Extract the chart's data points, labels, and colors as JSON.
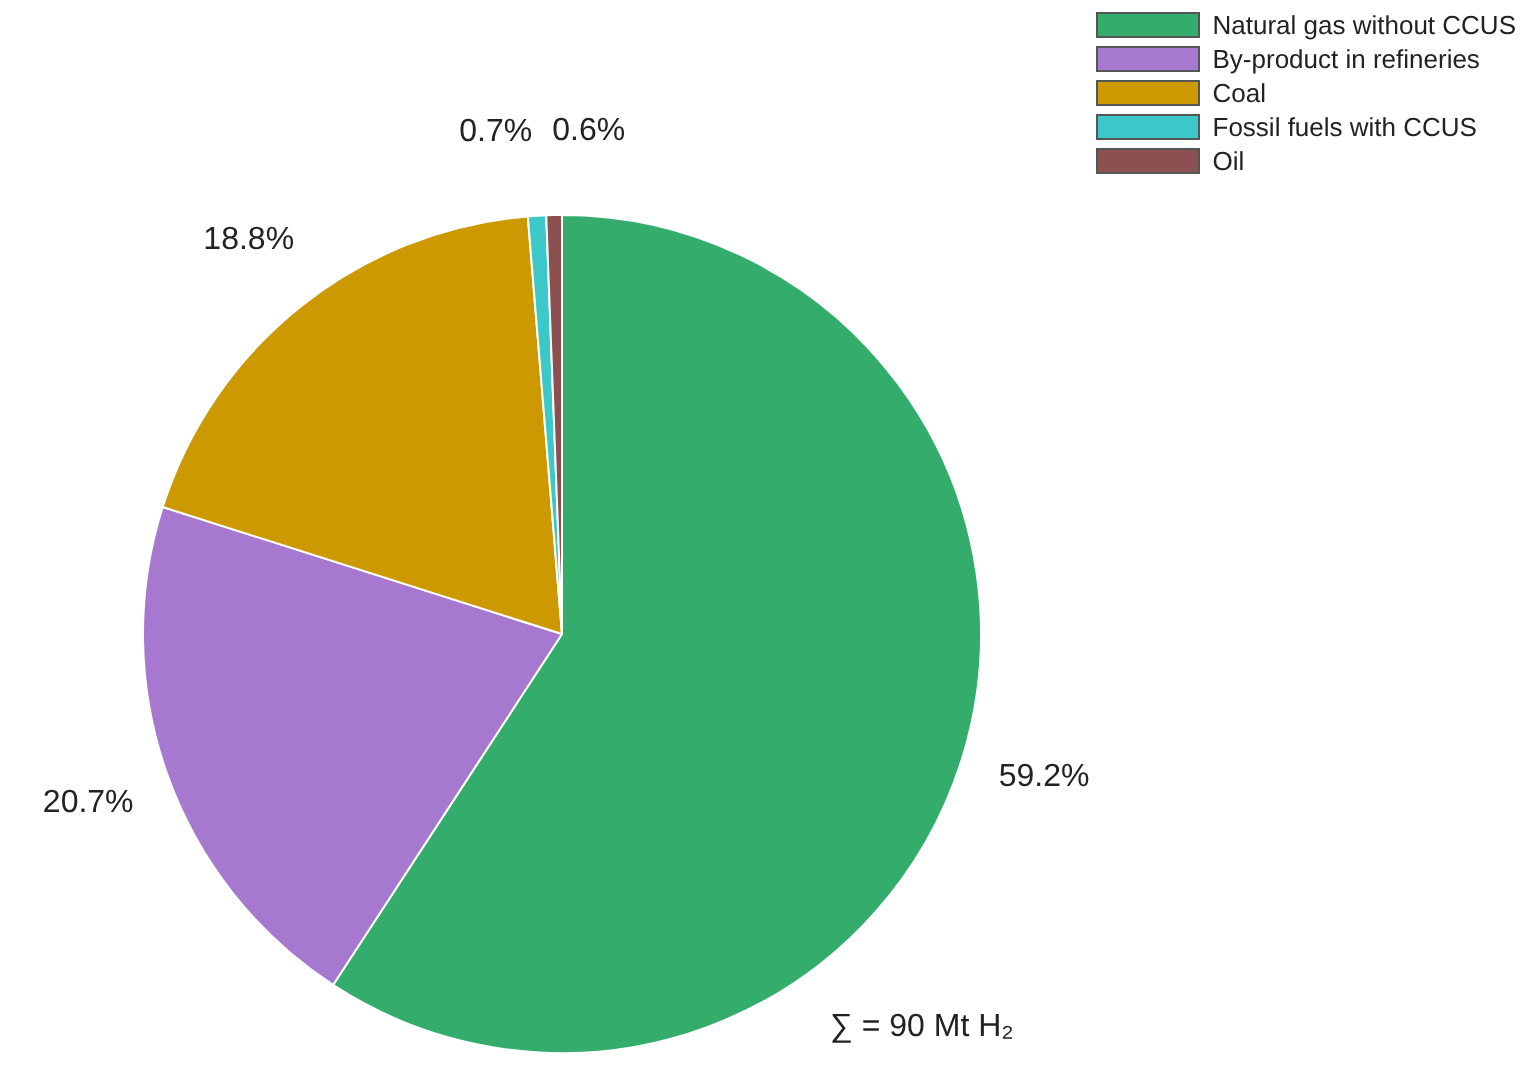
{
  "chart_data": {
    "type": "pie",
    "categories": [
      "Natural gas without CCUS",
      "By-product in refineries",
      "Coal",
      "Fossil fuels with CCUS",
      "Oil"
    ],
    "values": [
      59.2,
      20.7,
      18.8,
      0.7,
      0.6
    ],
    "colors": [
      "#34ad6c",
      "#a678d0",
      "#cc9a00",
      "#3cc8c8",
      "#8b5050"
    ],
    "value_labels": [
      "59.2%",
      "20.7%",
      "18.8%",
      "0.7%",
      "0.6%"
    ],
    "legend": "top right",
    "annotations": [
      "∑ = 90 Mt H₂"
    ]
  }
}
